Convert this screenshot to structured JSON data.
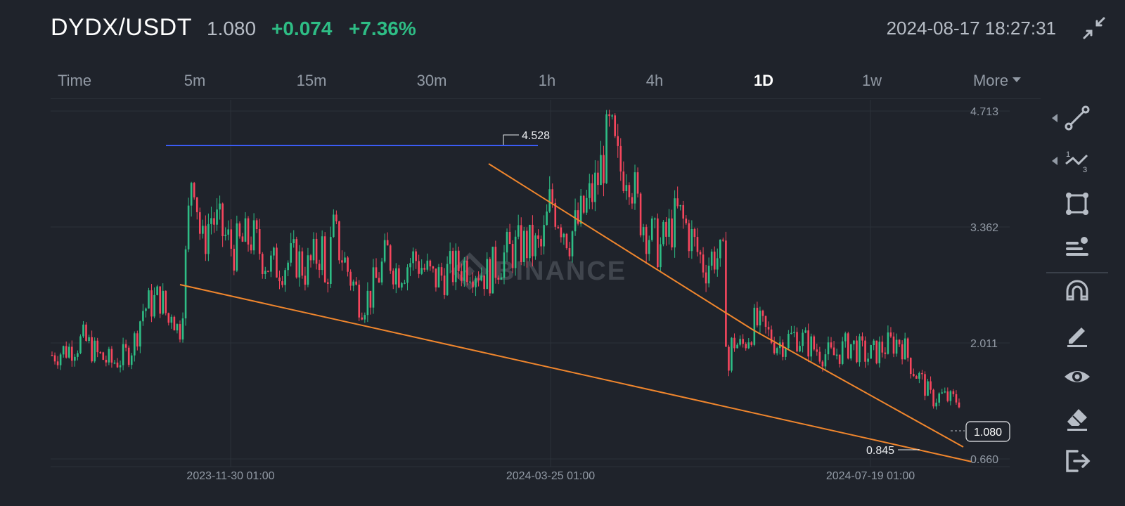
{
  "header": {
    "pair": "DYDX/USDT",
    "price": "1.080",
    "change": "+0.074",
    "change_percent": "+7.36%",
    "timestamp": "2024-08-17 18:27:31",
    "collapse_icon": "collapse-arrows-icon"
  },
  "tabs": [
    {
      "label": "Time"
    },
    {
      "label": "5m"
    },
    {
      "label": "15m"
    },
    {
      "label": "30m"
    },
    {
      "label": "1h"
    },
    {
      "label": "4h"
    },
    {
      "label": "1D",
      "active": true
    },
    {
      "label": "1w"
    },
    {
      "label": "More"
    }
  ],
  "chart": {
    "watermark": "BINANCE",
    "y_ticks": [
      "4.713",
      "3.362",
      "2.011",
      "0.660"
    ],
    "x_ticks": [
      "2023-11-30 01:00",
      "2024-03-25 01:00",
      "2024-07-19 01:00"
    ],
    "high_label": "4.528",
    "low_label": "0.845",
    "last_price_label": "1.080",
    "colors": {
      "up": "#2ebd85",
      "down": "#f6465d",
      "trendline": "#f0862d",
      "resistance": "#3b5cf5",
      "grid": "#2b3139"
    }
  },
  "chart_data": {
    "type": "candlestick",
    "symbol": "DYDX/USDT",
    "interval": "1D",
    "y_range": [
      0.66,
      4.713
    ],
    "x_ticks": [
      "2023-11-30 01:00",
      "2024-03-25 01:00",
      "2024-07-19 01:00"
    ],
    "high": 4.528,
    "low": 0.845,
    "last": 1.08,
    "trendlines": [
      {
        "name": "resistance",
        "color": "#3b5cf5",
        "y": 4.46
      },
      {
        "name": "upper",
        "color": "#f0862d"
      },
      {
        "name": "lower",
        "color": "#f0862d"
      }
    ],
    "close_path": [
      {
        "x": 0.0,
        "y": 1.87
      },
      {
        "x": 0.02,
        "y": 1.95
      },
      {
        "x": 0.035,
        "y": 2.05
      },
      {
        "x": 0.05,
        "y": 1.87
      },
      {
        "x": 0.065,
        "y": 1.78
      },
      {
        "x": 0.08,
        "y": 1.85
      },
      {
        "x": 0.09,
        "y": 2.0
      },
      {
        "x": 0.1,
        "y": 2.4
      },
      {
        "x": 0.12,
        "y": 2.55
      },
      {
        "x": 0.13,
        "y": 2.2
      },
      {
        "x": 0.135,
        "y": 2.3
      },
      {
        "x": 0.14,
        "y": 2.1
      },
      {
        "x": 0.13,
        "y": 2.5
      },
      {
        "x": 0.145,
        "y": 2.6
      },
      {
        "x": 0.15,
        "y": 3.4
      },
      {
        "x": 0.155,
        "y": 4.2
      },
      {
        "x": 0.165,
        "y": 3.1
      },
      {
        "x": 0.175,
        "y": 3.5
      },
      {
        "x": 0.2,
        "y": 3.1
      },
      {
        "x": 0.22,
        "y": 3.25
      },
      {
        "x": 0.24,
        "y": 2.9
      },
      {
        "x": 0.26,
        "y": 2.95
      },
      {
        "x": 0.27,
        "y": 3.0
      },
      {
        "x": 0.28,
        "y": 2.85
      },
      {
        "x": 0.3,
        "y": 3.15
      },
      {
        "x": 0.31,
        "y": 3.3
      },
      {
        "x": 0.33,
        "y": 2.75
      },
      {
        "x": 0.34,
        "y": 2.5
      },
      {
        "x": 0.3,
        "y": 2.6
      },
      {
        "x": 0.35,
        "y": 2.55
      },
      {
        "x": 0.37,
        "y": 3.05
      },
      {
        "x": 0.38,
        "y": 2.85
      },
      {
        "x": 0.4,
        "y": 3.0
      },
      {
        "x": 0.42,
        "y": 2.75
      },
      {
        "x": 0.44,
        "y": 2.85
      },
      {
        "x": 0.46,
        "y": 2.95
      },
      {
        "x": 0.48,
        "y": 2.8
      },
      {
        "x": 0.5,
        "y": 3.05
      },
      {
        "x": 0.52,
        "y": 3.15
      },
      {
        "x": 0.54,
        "y": 3.1
      },
      {
        "x": 0.55,
        "y": 3.7
      },
      {
        "x": 0.57,
        "y": 3.25
      },
      {
        "x": 0.58,
        "y": 3.4
      },
      {
        "x": 0.6,
        "y": 3.85
      },
      {
        "x": 0.615,
        "y": 4.45
      },
      {
        "x": 0.625,
        "y": 4.0
      },
      {
        "x": 0.635,
        "y": 4.15
      },
      {
        "x": 0.645,
        "y": 3.6
      },
      {
        "x": 0.655,
        "y": 3.35
      },
      {
        "x": 0.67,
        "y": 3.1
      },
      {
        "x": 0.68,
        "y": 3.3
      },
      {
        "x": 0.69,
        "y": 3.5
      },
      {
        "x": 0.7,
        "y": 3.35
      },
      {
        "x": 0.71,
        "y": 3.1
      },
      {
        "x": 0.72,
        "y": 2.9
      },
      {
        "x": 0.73,
        "y": 3.05
      },
      {
        "x": 0.74,
        "y": 2.95
      },
      {
        "x": 0.745,
        "y": 1.6
      },
      {
        "x": 0.75,
        "y": 2.05
      },
      {
        "x": 0.76,
        "y": 1.95
      },
      {
        "x": 0.775,
        "y": 2.25
      },
      {
        "x": 0.79,
        "y": 2.1
      },
      {
        "x": 0.8,
        "y": 2.0
      },
      {
        "x": 0.82,
        "y": 2.1
      },
      {
        "x": 0.84,
        "y": 1.95
      },
      {
        "x": 0.86,
        "y": 1.85
      },
      {
        "x": 0.88,
        "y": 2.0
      },
      {
        "x": 0.9,
        "y": 1.85
      },
      {
        "x": 0.915,
        "y": 1.95
      },
      {
        "x": 0.935,
        "y": 2.05
      },
      {
        "x": 0.95,
        "y": 1.7
      },
      {
        "x": 0.96,
        "y": 1.55
      },
      {
        "x": 0.97,
        "y": 1.35
      },
      {
        "x": 0.98,
        "y": 1.4
      },
      {
        "x": 0.99,
        "y": 1.35
      }
    ]
  },
  "toolbar": [
    {
      "name": "line-tool-icon",
      "expandable": true
    },
    {
      "name": "fib-tool-icon",
      "expandable": true
    },
    {
      "name": "shape-tool-icon"
    },
    {
      "name": "text-align-tool-icon"
    },
    {
      "name": "magnet-icon"
    },
    {
      "name": "pencil-icon"
    },
    {
      "name": "eye-icon"
    },
    {
      "name": "eraser-icon"
    },
    {
      "name": "exit-icon"
    }
  ]
}
